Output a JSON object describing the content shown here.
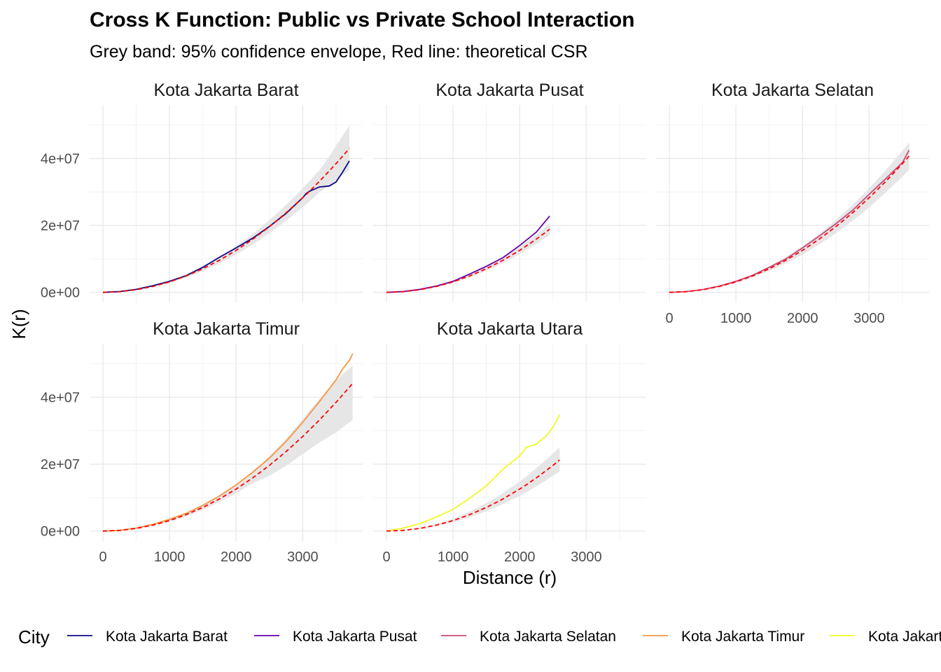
{
  "chart_data": {
    "type": "line",
    "title": "Cross K Function: Public vs Private School Interaction",
    "subtitle": "Grey band: 95% confidence envelope, Red line: theoretical CSR",
    "xlabel": "Distance (r)",
    "ylabel": "K(r)",
    "xlim": [
      -200,
      3900
    ],
    "ylim": [
      -3000000,
      56000000
    ],
    "x_ticks": [
      0,
      1000,
      2000,
      3000
    ],
    "x_tick_labels": [
      "0",
      "1000",
      "2000",
      "3000"
    ],
    "y_ticks": [
      0,
      20000000,
      40000000
    ],
    "y_tick_labels": [
      "0e+00",
      "2e+07",
      "4e+07"
    ],
    "grid": true,
    "legend": {
      "title": "City",
      "position": "bottom"
    },
    "envelope_color": "#e6e6e6",
    "theoretical_color": "#ff0000",
    "panels": [
      {
        "name": "Kota Jakarta Barat",
        "color": "#0d0887",
        "r": [
          0,
          250,
          500,
          750,
          1000,
          1250,
          1500,
          1750,
          2000,
          2250,
          2500,
          2750,
          3000,
          3050,
          3100,
          3250,
          3400,
          3500,
          3600,
          3700
        ],
        "observed": [
          0,
          250000,
          900000,
          2000000,
          3300000,
          5000000,
          7500000,
          10500000,
          13300000,
          16200000,
          19700000,
          23600000,
          28300000,
          29500000,
          30200000,
          31500000,
          31800000,
          33000000,
          36000000,
          39300000
        ],
        "theoretical": [
          0,
          200000,
          790000,
          1770000,
          3140000,
          4910000,
          7070000,
          9620000,
          12570000,
          15900000,
          19630000,
          23760000,
          28270000,
          29200000,
          30190000,
          33180000,
          36320000,
          38480000,
          40720000,
          43010000
        ],
        "envelope_low": [
          0,
          180000,
          710000,
          1590000,
          2830000,
          4420000,
          6360000,
          8650000,
          11310000,
          14300000,
          17670000,
          21380000,
          25440000,
          26280000,
          27170000,
          29860000,
          31960000,
          33470000,
          35020000,
          36560000
        ],
        "envelope_high": [
          0,
          220000,
          870000,
          1950000,
          3450000,
          5400000,
          7780000,
          10580000,
          13830000,
          17490000,
          21590000,
          26140000,
          31100000,
          32120000,
          33210000,
          36500000,
          40680000,
          43870000,
          46830000,
          49890000
        ]
      },
      {
        "name": "Kota Jakarta Pusat",
        "color": "#6a00a8",
        "r": [
          0,
          250,
          500,
          750,
          1000,
          1250,
          1500,
          1750,
          2000,
          2250,
          2450
        ],
        "observed": [
          0,
          250000,
          900000,
          1900000,
          3300000,
          5500000,
          7800000,
          10400000,
          14000000,
          18000000,
          22800000
        ],
        "theoretical": [
          0,
          200000,
          790000,
          1770000,
          3140000,
          4910000,
          7070000,
          9620000,
          12570000,
          15900000,
          18860000
        ],
        "envelope_low": [
          0,
          180000,
          720000,
          1610000,
          2860000,
          4470000,
          6430000,
          8750000,
          11440000,
          14470000,
          17160000
        ],
        "envelope_high": [
          0,
          220000,
          860000,
          1930000,
          3420000,
          5350000,
          7710000,
          10490000,
          13700000,
          17330000,
          20560000
        ]
      },
      {
        "name": "Kota Jakarta Selatan",
        "color": "#cc4778",
        "r": [
          0,
          250,
          500,
          750,
          1000,
          1250,
          1500,
          1750,
          2000,
          2250,
          2500,
          2750,
          3000,
          3250,
          3500,
          3600
        ],
        "observed": [
          0,
          220000,
          850000,
          1850000,
          3300000,
          5100000,
          7500000,
          10000000,
          13300000,
          16800000,
          20500000,
          24500000,
          29300000,
          34000000,
          38800000,
          42500000
        ],
        "theoretical": [
          0,
          200000,
          790000,
          1770000,
          3140000,
          4910000,
          7070000,
          9620000,
          12570000,
          15900000,
          19630000,
          23760000,
          28270000,
          33180000,
          38480000,
          40720000
        ],
        "envelope_low": [
          0,
          180000,
          710000,
          1590000,
          2830000,
          4420000,
          6360000,
          8660000,
          11310000,
          14310000,
          17670000,
          21380000,
          25440000,
          29860000,
          34630000,
          36650000
        ],
        "envelope_high": [
          0,
          220000,
          870000,
          1950000,
          3450000,
          5400000,
          7780000,
          10580000,
          13830000,
          17490000,
          21590000,
          26140000,
          31100000,
          36500000,
          42330000,
          44790000
        ]
      },
      {
        "name": "Kota Jakarta Timur",
        "color": "#f89540",
        "r": [
          0,
          250,
          500,
          750,
          1000,
          1250,
          1500,
          1750,
          2000,
          2250,
          2500,
          2750,
          3000,
          3250,
          3500,
          3600,
          3700,
          3750
        ],
        "observed": [
          0,
          230000,
          900000,
          2000000,
          3500000,
          5300000,
          7700000,
          10500000,
          13800000,
          17600000,
          21800000,
          26800000,
          32500000,
          38700000,
          45200000,
          48500000,
          51000000,
          53000000
        ],
        "theoretical": [
          0,
          200000,
          790000,
          1770000,
          3140000,
          4910000,
          7070000,
          9620000,
          12570000,
          15900000,
          19630000,
          23760000,
          28270000,
          33180000,
          38480000,
          40720000,
          43010000,
          44180000
        ],
        "envelope_low": [
          0,
          180000,
          710000,
          1590000,
          2830000,
          4420000,
          6360000,
          8650000,
          11310000,
          14310000,
          16500000,
          19500000,
          23000000,
          26500000,
          29500000,
          31000000,
          32500000,
          33200000
        ],
        "envelope_high": [
          0,
          220000,
          870000,
          1950000,
          3450000,
          5400000,
          7780000,
          10580000,
          13830000,
          17490000,
          22500000,
          27500000,
          33500000,
          39500000,
          45000000,
          47000000,
          48500000,
          49500000
        ]
      },
      {
        "name": "Kota Jakarta Utara",
        "color": "#f0f921",
        "r": [
          0,
          250,
          500,
          750,
          1000,
          1250,
          1500,
          1700,
          1750,
          2000,
          2100,
          2250,
          2400,
          2500,
          2600
        ],
        "observed": [
          0,
          900000,
          2200000,
          4200000,
          6500000,
          9800000,
          13500000,
          17500000,
          18500000,
          22500000,
          25000000,
          26000000,
          28500000,
          31000000,
          34800000
        ],
        "theoretical": [
          0,
          200000,
          790000,
          1770000,
          3140000,
          4910000,
          7070000,
          9080000,
          9620000,
          12570000,
          13850000,
          15900000,
          18100000,
          19630000,
          21240000
        ],
        "envelope_low": [
          0,
          170000,
          660000,
          1490000,
          2640000,
          4120000,
          5940000,
          7630000,
          8080000,
          10560000,
          11630000,
          13360000,
          15200000,
          16490000,
          17840000
        ],
        "envelope_high": [
          0,
          240000,
          930000,
          2090000,
          3700000,
          5790000,
          8340000,
          10710000,
          11350000,
          14830000,
          16340000,
          18760000,
          21360000,
          23160000,
          25060000
        ]
      }
    ]
  }
}
